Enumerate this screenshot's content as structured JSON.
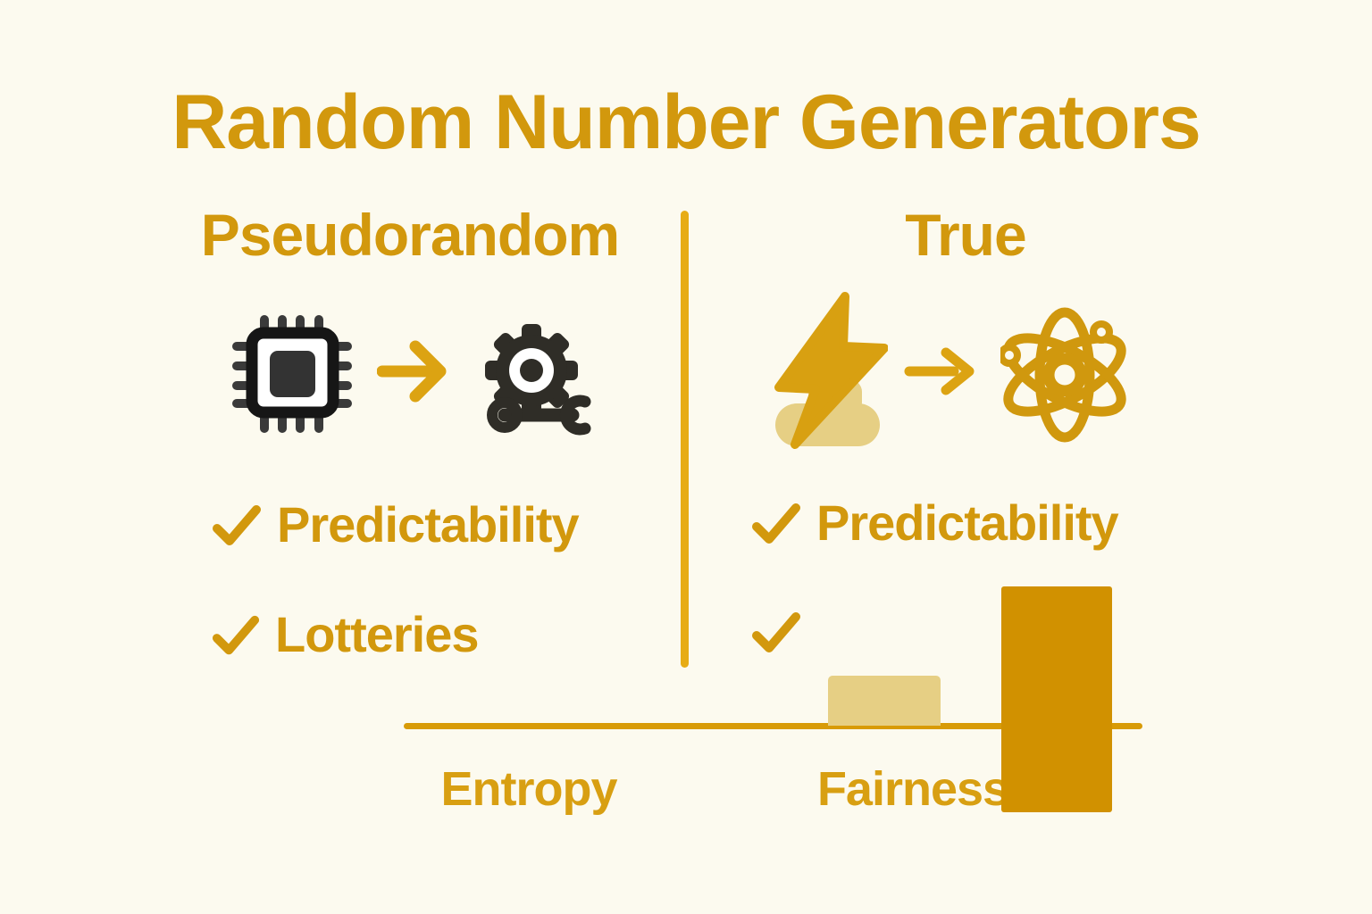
{
  "title": "Random Number Generators",
  "left_column": {
    "header": "Pseudorandom",
    "flow": {
      "from_icon": "chip-icon",
      "arrow_icon": "arrow-right-icon",
      "to_icon": "gear-key-icon"
    },
    "checklist": [
      {
        "label": "Predictability"
      },
      {
        "label": "Lotteries"
      }
    ]
  },
  "right_column": {
    "header": "True",
    "flow": {
      "from_icon": "lightning-icon",
      "arrow_icon": "arrow-right-icon",
      "to_icon": "atom-icon"
    },
    "checklist": [
      {
        "label": "Predictability"
      },
      {
        "label": ""
      }
    ]
  },
  "chart_data": {
    "type": "bar",
    "title": "",
    "xlabel": "",
    "ylabel": "",
    "categories": [
      "Entropy",
      "Fairness"
    ],
    "series": [
      {
        "name": "pale bar",
        "color": "#E6CF84",
        "values": [
          0,
          0.22
        ],
        "note": "small pale bar sitting on the axis above the Fairness label"
      },
      {
        "name": "dark bar",
        "color": "#D19100",
        "values": [
          0,
          1.0
        ],
        "note": "tall dark bar at the far right, overlapping the end of the Fairness label and extending below the axis"
      }
    ],
    "axis": {
      "baseline": "horizontal",
      "ticks": false,
      "gridlines": false,
      "numeric_labels": false
    },
    "legend": false
  },
  "colors": {
    "background": "#FCFAEF",
    "gold_text": "#D2980D",
    "gold_bright_divider": "#E7AC15",
    "axis_gold": "#D89B07",
    "bar_dark": "#D19100",
    "bar_pale": "#E6CF84",
    "icon_dark": "#2F2D27",
    "chip_black": "#161616",
    "chip_gray": "#3A3A3A"
  }
}
